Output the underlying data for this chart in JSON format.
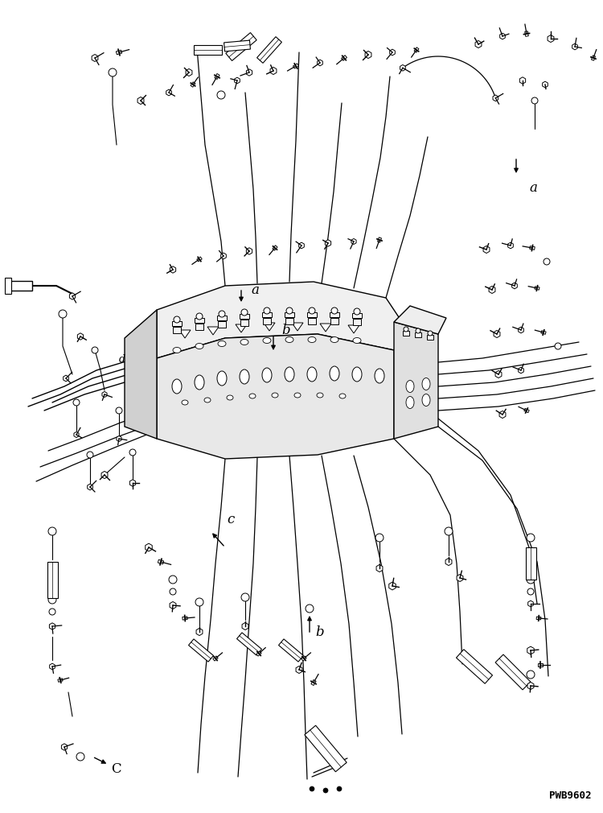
{
  "watermark": "PWB9602",
  "bg": "#ffffff",
  "lc": "#000000"
}
